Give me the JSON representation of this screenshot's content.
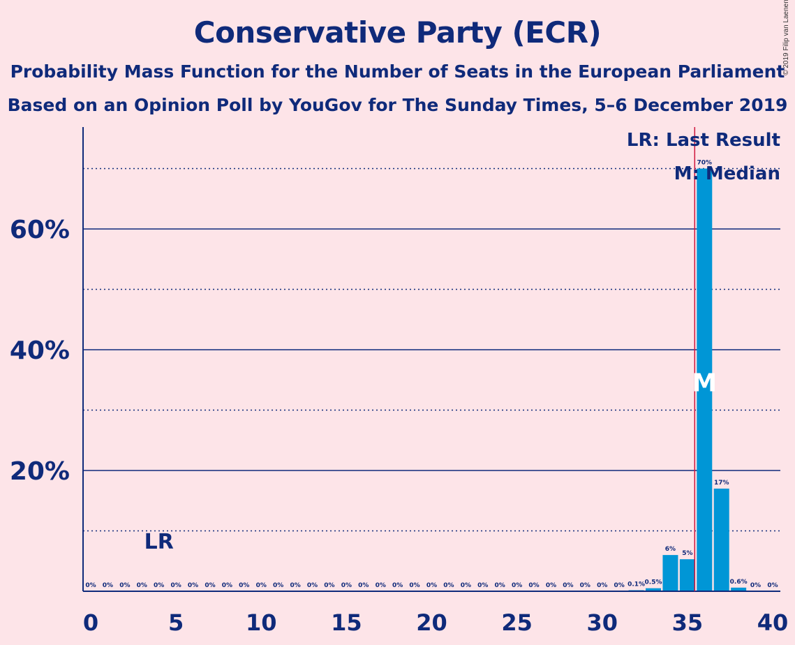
{
  "title": "Conservative Party (ECR)",
  "subtitle1": "Probability Mass Function for the Number of Seats in the European Parliament",
  "subtitle2": "Based on an Opinion Poll by YouGov for The Sunday Times, 5–6 December 2019",
  "copyright": "© 2019 Filip van Laenen",
  "legend": {
    "last_result": "LR: Last Result",
    "median": "M: Median"
  },
  "markers": {
    "last_result_label": "LR",
    "last_result_seats": 4,
    "median_label": "M",
    "median_seats": 36,
    "majority_line_seats": 36
  },
  "colors": {
    "background": "#fde4e8",
    "text": "#0f2a7a",
    "bar": "#0096d6",
    "median_line": "#d0143c"
  },
  "chart_data": {
    "type": "bar",
    "xlabel": "",
    "ylabel": "",
    "xlim": [
      0,
      40
    ],
    "ylim": [
      0,
      0.77
    ],
    "x_ticks": [
      0,
      5,
      10,
      15,
      20,
      25,
      30,
      35,
      40
    ],
    "y_ticks_major": [
      0.2,
      0.4,
      0.6
    ],
    "y_tick_labels": [
      "20%",
      "40%",
      "60%"
    ],
    "y_ticks_minor": [
      0.1,
      0.3,
      0.5,
      0.7
    ],
    "categories": [
      0,
      1,
      2,
      3,
      4,
      5,
      6,
      7,
      8,
      9,
      10,
      11,
      12,
      13,
      14,
      15,
      16,
      17,
      18,
      19,
      20,
      21,
      22,
      23,
      24,
      25,
      26,
      27,
      28,
      29,
      30,
      31,
      32,
      33,
      34,
      35,
      36,
      37,
      38,
      39,
      40
    ],
    "values": [
      0,
      0,
      0,
      0,
      0,
      0,
      0,
      0,
      0,
      0,
      0,
      0,
      0,
      0,
      0,
      0,
      0,
      0,
      0,
      0,
      0,
      0,
      0,
      0,
      0,
      0,
      0,
      0,
      0,
      0,
      0,
      0,
      0.001,
      0.005,
      0.06,
      0.053,
      0.7,
      0.17,
      0.006,
      0,
      0
    ],
    "labels": [
      "0%",
      "0%",
      "0%",
      "0%",
      "0%",
      "0%",
      "0%",
      "0%",
      "0%",
      "0%",
      "0%",
      "0%",
      "0%",
      "0%",
      "0%",
      "0%",
      "0%",
      "0%",
      "0%",
      "0%",
      "0%",
      "0%",
      "0%",
      "0%",
      "0%",
      "0%",
      "0%",
      "0%",
      "0%",
      "0%",
      "0%",
      "0%",
      "0.1%",
      "0.5%",
      "6%",
      "5%",
      "70%",
      "17%",
      "0.6%",
      "0%",
      "0%"
    ]
  }
}
